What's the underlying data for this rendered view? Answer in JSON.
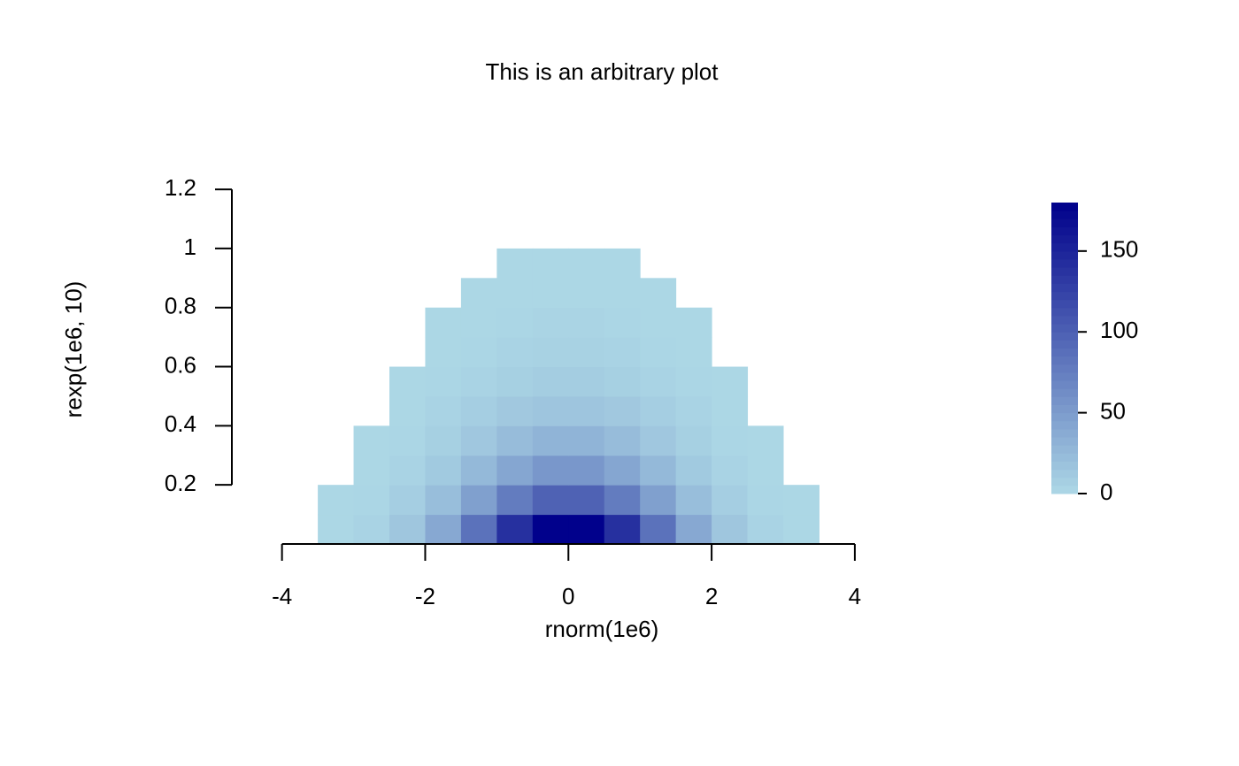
{
  "chart_data": {
    "type": "heatmap",
    "title": "This is an arbitrary plot",
    "xlabel": "rnorm(1e6)",
    "ylabel": "rexp(1e6, 10)",
    "x_bins": [
      -4,
      -3.5,
      -3,
      -2.5,
      -2,
      -1.5,
      -1,
      -0.5,
      0,
      0.5,
      1,
      1.5,
      2,
      2.5,
      3,
      3.5,
      4
    ],
    "y_bins": [
      0,
      0.1,
      0.2,
      0.3,
      0.4,
      0.5,
      0.6,
      0.7,
      0.8,
      0.9,
      1
    ],
    "values": [
      [
        0,
        1,
        4,
        15,
        40,
        85,
        140,
        179,
        179,
        140,
        85,
        40,
        15,
        4,
        1,
        0
      ],
      [
        0,
        1,
        2,
        8,
        22,
        47,
        77,
        98,
        98,
        77,
        47,
        22,
        8,
        2,
        1,
        0
      ],
      [
        0,
        0,
        1,
        4,
        12,
        26,
        42,
        54,
        54,
        42,
        26,
        12,
        4,
        1,
        0,
        0
      ],
      [
        0,
        0,
        1,
        2,
        7,
        14,
        23,
        30,
        30,
        23,
        14,
        7,
        2,
        1,
        0,
        0
      ],
      [
        0,
        0,
        0,
        1,
        4,
        8,
        13,
        16,
        16,
        13,
        8,
        4,
        1,
        0,
        0,
        0
      ],
      [
        0,
        0,
        0,
        1,
        2,
        4,
        7,
        9,
        9,
        7,
        4,
        2,
        1,
        0,
        0,
        0
      ],
      [
        0,
        0,
        0,
        0,
        1,
        2,
        4,
        5,
        5,
        4,
        2,
        1,
        0,
        0,
        0,
        0
      ],
      [
        0,
        0,
        0,
        0,
        1,
        1,
        2,
        3,
        3,
        2,
        1,
        1,
        0,
        0,
        0,
        0
      ],
      [
        0,
        0,
        0,
        0,
        0,
        1,
        1,
        1,
        1,
        1,
        1,
        0,
        0,
        0,
        0,
        0
      ],
      [
        0,
        0,
        0,
        0,
        0,
        0,
        1,
        1,
        1,
        1,
        0,
        0,
        0,
        0,
        0,
        0
      ]
    ],
    "xlim": [
      -4.7,
      5.2
    ],
    "ylim": [
      0,
      1.32
    ],
    "xticks": [
      -4,
      -2,
      0,
      2,
      4
    ],
    "yticks": [
      0.2,
      0.4,
      0.6,
      0.8,
      1,
      1.2
    ],
    "colors": [
      "#add8e6",
      "#00008b"
    ],
    "zlim": [
      0,
      180
    ],
    "zticks": [
      0,
      50,
      100,
      150
    ]
  }
}
